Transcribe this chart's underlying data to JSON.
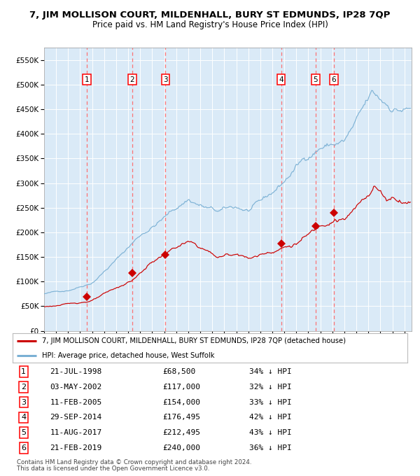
{
  "title": "7, JIM MOLLISON COURT, MILDENHALL, BURY ST EDMUNDS, IP28 7QP",
  "subtitle": "Price paid vs. HM Land Registry's House Price Index (HPI)",
  "title_fontsize": 9.5,
  "subtitle_fontsize": 8.5,
  "plot_bg_color": "#daeaf7",
  "ylim": [
    0,
    575000
  ],
  "yticks": [
    0,
    50000,
    100000,
    150000,
    200000,
    250000,
    300000,
    350000,
    400000,
    450000,
    500000,
    550000
  ],
  "xlim_start": 1995.0,
  "xlim_end": 2025.6,
  "sale_dates_num": [
    1998.55,
    2002.34,
    2005.11,
    2014.74,
    2017.61,
    2019.13
  ],
  "sale_prices": [
    68500,
    117000,
    154000,
    176495,
    212495,
    240000
  ],
  "sale_labels": [
    "1",
    "2",
    "3",
    "4",
    "5",
    "6"
  ],
  "legend_line1": "7, JIM MOLLISON COURT, MILDENHALL, BURY ST EDMUNDS, IP28 7QP (detached house)",
  "legend_line2": "HPI: Average price, detached house, West Suffolk",
  "table_rows": [
    [
      "1",
      "21-JUL-1998",
      "£68,500",
      "34% ↓ HPI"
    ],
    [
      "2",
      "03-MAY-2002",
      "£117,000",
      "32% ↓ HPI"
    ],
    [
      "3",
      "11-FEB-2005",
      "£154,000",
      "33% ↓ HPI"
    ],
    [
      "4",
      "29-SEP-2014",
      "£176,495",
      "42% ↓ HPI"
    ],
    [
      "5",
      "11-AUG-2017",
      "£212,495",
      "43% ↓ HPI"
    ],
    [
      "6",
      "21-FEB-2019",
      "£240,000",
      "36% ↓ HPI"
    ]
  ],
  "footer_line1": "Contains HM Land Registry data © Crown copyright and database right 2024.",
  "footer_line2": "This data is licensed under the Open Government Licence v3.0.",
  "red_color": "#cc0000",
  "blue_color": "#7ab0d4",
  "vline_color": "#ff6666"
}
